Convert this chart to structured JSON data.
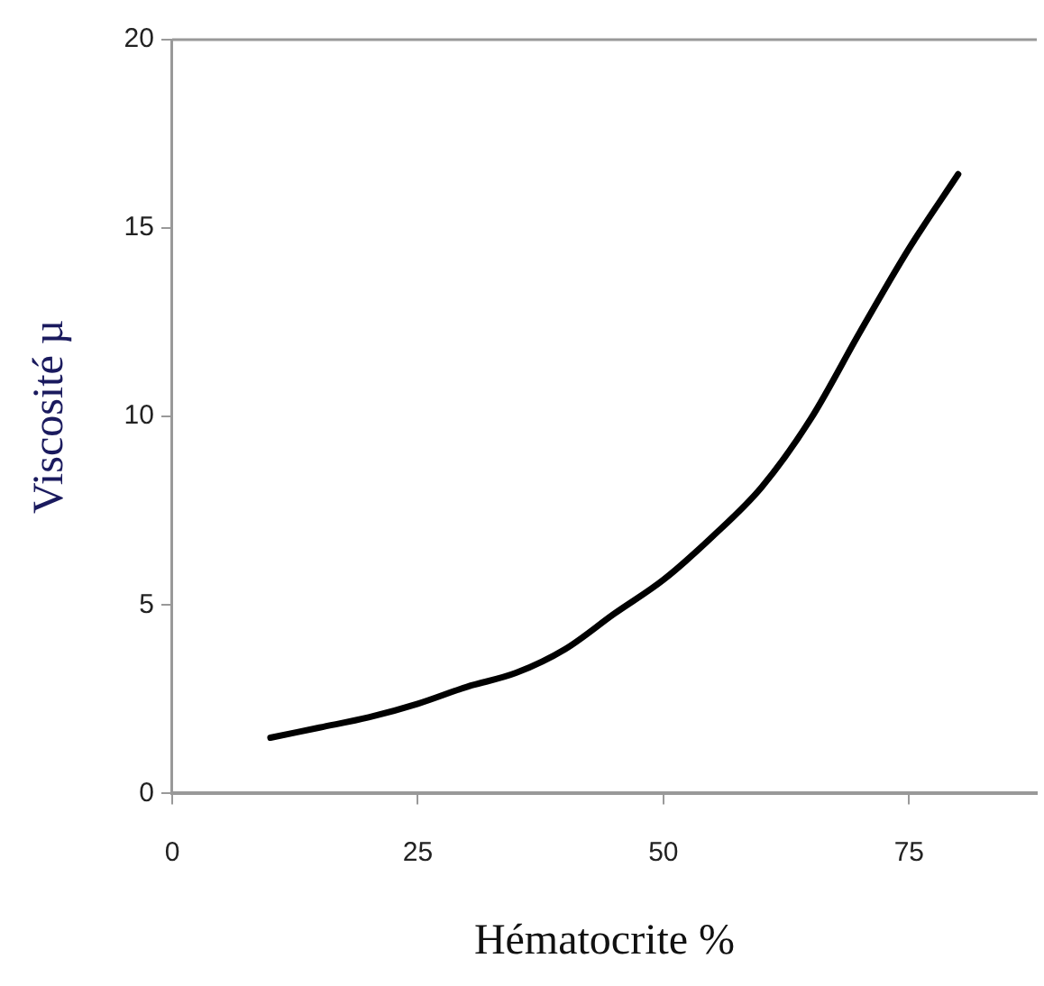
{
  "chart_data": {
    "type": "line",
    "xlabel": "Hématocrite %",
    "ylabel": "Viscosité µ",
    "x": [
      10,
      15,
      20,
      25,
      30,
      35,
      40,
      45,
      50,
      55,
      60,
      65,
      70,
      75,
      80
    ],
    "series": [
      {
        "color": "#000000",
        "values": [
          1.48,
          1.75,
          2.02,
          2.38,
          2.83,
          3.2,
          3.83,
          4.77,
          5.67,
          6.82,
          8.13,
          9.94,
          12.24,
          14.46,
          16.43
        ]
      }
    ],
    "xlim": [
      0,
      88
    ],
    "xticks": [
      0,
      25,
      50,
      75
    ],
    "ylim": [
      0,
      20
    ],
    "yticks": [
      0,
      5,
      10,
      15,
      20
    ],
    "grid": false,
    "legend": false,
    "marker": "none",
    "line_style": "solid"
  }
}
